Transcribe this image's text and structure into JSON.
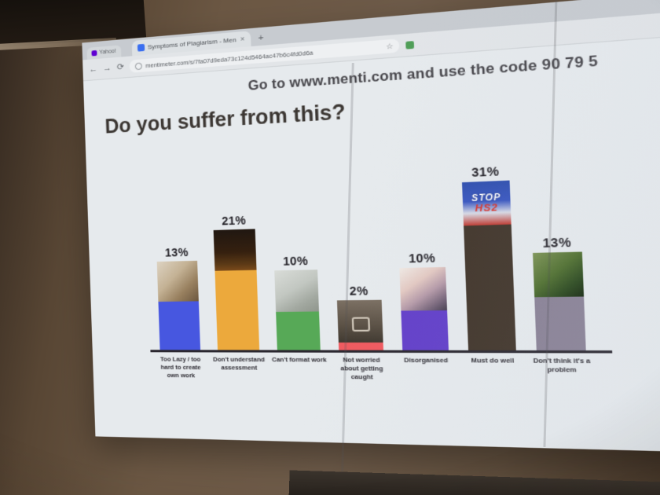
{
  "browser": {
    "tabs": [
      {
        "label": "Yahoo!",
        "favicon": "yahoo-favicon",
        "favicon_color": "#5f01d1"
      },
      {
        "label": "Symptoms of Plagiarism - Men",
        "favicon": "mentimeter-favicon",
        "favicon_color": "#3b6ff0",
        "close_label": "×"
      }
    ],
    "new_tab_label": "+",
    "nav": {
      "back": "←",
      "forward": "→",
      "reload": "⟳",
      "url": "mentimeter.com/s/7fa07d9eda73c124d5464ac47b6c4fd0d6a",
      "bookmark_star": "☆",
      "extension_color": "#4f9e57"
    }
  },
  "slide": {
    "instruction": "Go to www.menti.com and use the code 90 79 5",
    "title": "Do you suffer from this?"
  },
  "chart_data": {
    "type": "bar",
    "title": "Do you suffer from this?",
    "unit": "%",
    "categories": [
      "Too Lazy / too hard to create own work",
      "Don't understand assessment",
      "Can't format work",
      "Not worried about getting caught",
      "Disorganised",
      "Must do well",
      "Don't think it's a problem"
    ],
    "values": [
      13,
      21,
      10,
      2,
      10,
      31,
      13
    ],
    "value_labels": [
      "13%",
      "21%",
      "10%",
      "2%",
      "10%",
      "31%",
      "13%"
    ],
    "bar_colors": [
      "#4757e0",
      "#eca93c",
      "#57a957",
      "#f05a5f",
      "#6340c9",
      "#42362b",
      "#8a8296"
    ],
    "bar_images": [
      "sleeping-person-photo",
      "dark-exam-hall-photo",
      "stacked-papers-photo",
      "locked-device-photo",
      "messy-pile-photo",
      "stop-hs2-poster",
      "palm-foliage-photo"
    ],
    "poster_text_lines": [
      "STOP",
      "HS2"
    ],
    "ylim": [
      0,
      31
    ],
    "legend": "none",
    "gridlines": "off"
  },
  "environment": {
    "surface": "projection-on-whiteboard",
    "wall_color": "#6b5743",
    "screen_color": "#e3e7ea"
  }
}
